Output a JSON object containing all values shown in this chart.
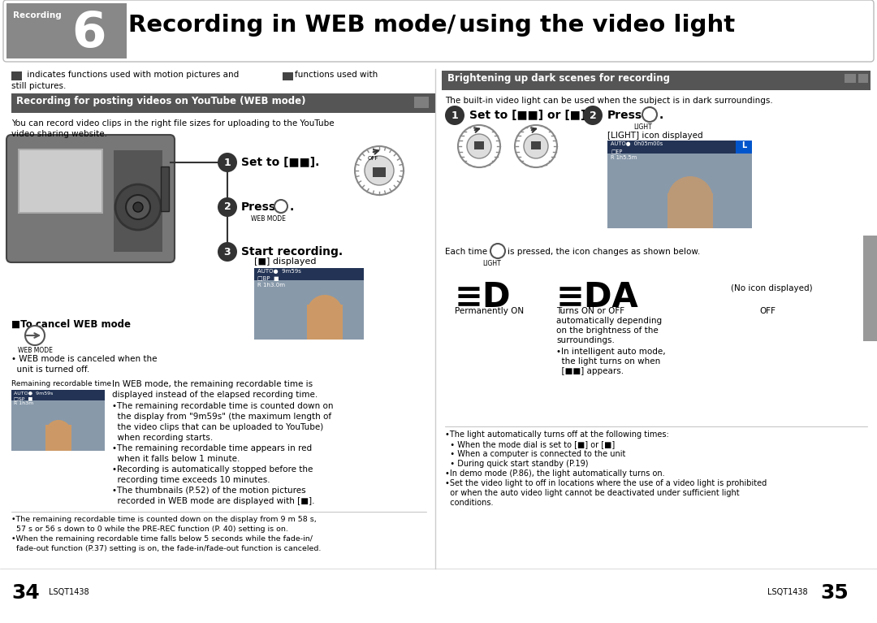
{
  "bg_color": "#ffffff",
  "header_bg": "#888888",
  "header_title_left": "Recording in WEB mode/",
  "header_title_right": "using the video light",
  "header_number": "6",
  "header_label": "Recording",
  "section_bar_color": "#555555",
  "section1_title": "Recording for posting videos on YouTube (WEB mode)",
  "section2_title": "Brightening up dark scenes for recording",
  "page_left": "34",
  "page_right": "35",
  "footer_code": "LSQT1438",
  "tab_color": "#999999",
  "divider_color": "#cccccc",
  "light_gray": "#dddddd",
  "mid_gray": "#888888"
}
